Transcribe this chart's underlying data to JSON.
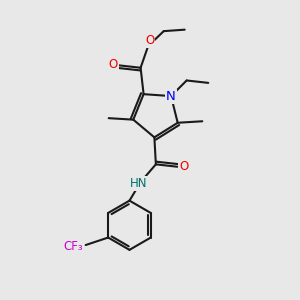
{
  "background_color": "#e8e8e8",
  "bond_color": "#1a1a1a",
  "N_color": "#0000ee",
  "O_color": "#ee0000",
  "F_color": "#cc00cc",
  "H_color": "#007070",
  "lw": 1.5,
  "fs": 8.5,
  "xlim": [
    0,
    10
  ],
  "ylim": [
    0,
    10
  ]
}
